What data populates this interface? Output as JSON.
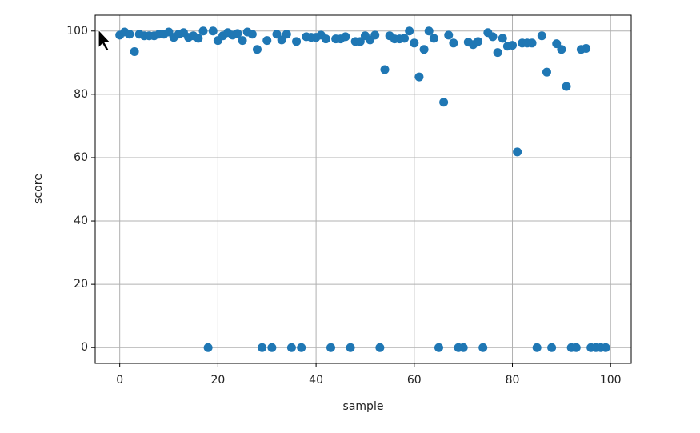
{
  "chart_data": {
    "type": "scatter",
    "xlabel": "sample",
    "ylabel": "score",
    "color": "#1f77b4",
    "grid": true,
    "x": [
      0,
      1,
      2,
      3,
      4,
      5,
      6,
      7,
      8,
      9,
      10,
      11,
      12,
      13,
      14,
      15,
      16,
      17,
      18,
      19,
      20,
      21,
      22,
      23,
      24,
      25,
      26,
      27,
      28,
      29,
      30,
      31,
      32,
      33,
      34,
      35,
      36,
      37,
      38,
      39,
      40,
      41,
      42,
      43,
      44,
      45,
      46,
      47,
      48,
      49,
      50,
      51,
      52,
      53,
      54,
      55,
      56,
      57,
      58,
      59,
      60,
      61,
      62,
      63,
      64,
      65,
      66,
      67,
      68,
      69,
      70,
      71,
      72,
      73,
      74,
      75,
      76,
      77,
      78,
      79,
      80,
      81,
      82,
      83,
      84,
      85,
      86,
      87,
      88,
      89,
      90,
      91,
      92,
      93,
      94,
      95,
      96,
      97,
      98,
      99
    ],
    "values": [
      98.7,
      99.7,
      99,
      93.5,
      99,
      98.5,
      98.5,
      98.5,
      99,
      99,
      99.7,
      98,
      99,
      99.5,
      98,
      98.5,
      97.7,
      100,
      0,
      100,
      97,
      98.5,
      99.5,
      98.7,
      99.2,
      97,
      99.7,
      99,
      94.2,
      0,
      97,
      0,
      99,
      97.2,
      99,
      0,
      96.7,
      0,
      98.2,
      98,
      98,
      98.7,
      97.5,
      0,
      97.5,
      97.5,
      98.2,
      0,
      96.7,
      96.7,
      98.5,
      97.2,
      98.7,
      0,
      87.8,
      98.5,
      97.5,
      97.5,
      97.7,
      100,
      96.2,
      85.5,
      94.2,
      100,
      97.7,
      0,
      77.5,
      98.7,
      96.2,
      0,
      0,
      96.5,
      95.7,
      96.7,
      0,
      99.5,
      98.2,
      93.2,
      97.7,
      95.2,
      95.5,
      61.8,
      96.2,
      96.2,
      96.2,
      0,
      98.5,
      87,
      0,
      96,
      94.2,
      82.5,
      0,
      0,
      94.2,
      94.5,
      0,
      0,
      0,
      0
    ],
    "xlim": [
      -5,
      104.2
    ],
    "ylim": [
      -5,
      105
    ],
    "xticks": [
      0,
      20,
      40,
      60,
      80,
      100
    ],
    "yticks": [
      0,
      20,
      40,
      60,
      80,
      100
    ]
  }
}
